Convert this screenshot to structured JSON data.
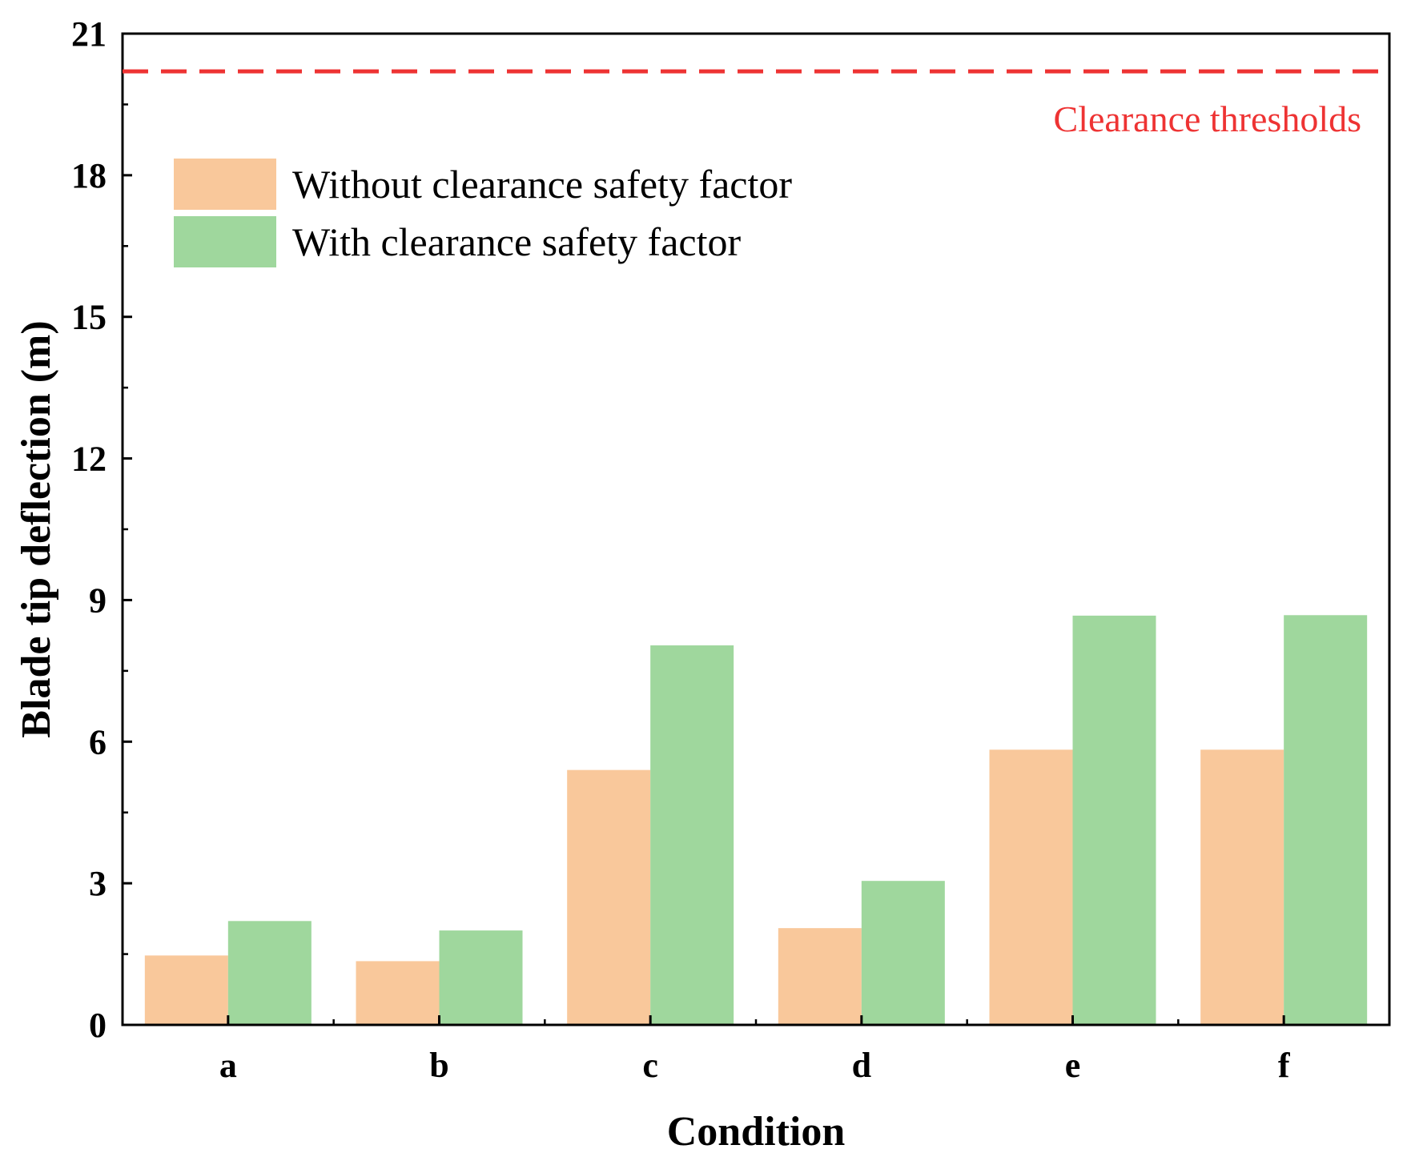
{
  "chart_data": {
    "type": "bar",
    "title": "",
    "xlabel": "Condition",
    "ylabel": "Blade tip deflection (m)",
    "categories": [
      "a",
      "b",
      "c",
      "d",
      "e",
      "f"
    ],
    "ylim": [
      0,
      21
    ],
    "yticks": [
      0,
      3,
      6,
      9,
      12,
      15,
      18,
      21
    ],
    "yticks_labels": [
      "0",
      "3",
      "6",
      "9",
      "12",
      "15",
      "18",
      "21"
    ],
    "grid": false,
    "legend_position": "upper-left",
    "series": [
      {
        "name": "Without clearance safety factor",
        "color": "#F9C89B",
        "values": [
          1.47,
          1.35,
          5.4,
          2.05,
          5.83,
          5.83
        ]
      },
      {
        "name": "With clearance safety factor",
        "color": "#9FD79D",
        "values": [
          2.2,
          2.0,
          8.04,
          3.05,
          8.67,
          8.68
        ]
      }
    ],
    "reference_line": {
      "label": "Clearance thresholds",
      "value": 20.2,
      "color": "#EE3333",
      "style": "dashed"
    }
  }
}
